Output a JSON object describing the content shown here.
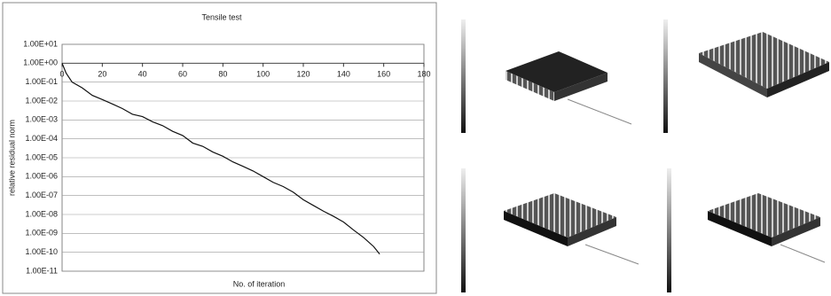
{
  "chart_data": {
    "type": "line",
    "title": "Tensile test",
    "x_label": "No. of iteration",
    "y_label": "relative residual norm",
    "y_log": true,
    "grid": true,
    "x": [
      0,
      2,
      5,
      10,
      15,
      20,
      25,
      30,
      35,
      40,
      45,
      50,
      55,
      60,
      65,
      70,
      75,
      80,
      85,
      90,
      95,
      100,
      105,
      110,
      115,
      120,
      125,
      130,
      135,
      140,
      145,
      150,
      155,
      158
    ],
    "series": [
      {
        "color": "#111111",
        "values": [
          1,
          0.3,
          0.1,
          0.05,
          0.02,
          0.012,
          0.007,
          0.004,
          0.002,
          0.0015,
          0.0008,
          0.0005,
          0.00025,
          0.00015,
          6e-05,
          4e-05,
          2e-05,
          1.2e-05,
          6e-06,
          3.5e-06,
          2e-06,
          1e-06,
          5e-07,
          3e-07,
          1.5e-07,
          6e-08,
          3e-08,
          1.5e-08,
          8e-09,
          4e-09,
          1.5e-09,
          6e-10,
          2e-10,
          8e-11
        ]
      }
    ],
    "xlim": [
      0,
      180
    ],
    "xticks": [
      0,
      20,
      40,
      60,
      80,
      100,
      120,
      140,
      160,
      180
    ],
    "ylim": [
      1e-11,
      10
    ],
    "yticks": [
      {
        "value": 10,
        "label": "1.00E+01"
      },
      {
        "value": 1,
        "label": "1.00E+00"
      },
      {
        "value": 0.1,
        "label": "1.00E-01"
      },
      {
        "value": 0.01,
        "label": "1.00E-02"
      },
      {
        "value": 0.001,
        "label": "1.00E-03"
      },
      {
        "value": 0.0001,
        "label": "1.00E-04"
      },
      {
        "value": 1e-05,
        "label": "1.00E-05"
      },
      {
        "value": 1e-06,
        "label": "1.00E-06"
      },
      {
        "value": 1e-07,
        "label": "1.00E-07"
      },
      {
        "value": 1e-08,
        "label": "1.00E-08"
      },
      {
        "value": 1e-09,
        "label": "1.00E-09"
      },
      {
        "value": 1e-10,
        "label": "1.00E-10"
      },
      {
        "value": 1e-11,
        "label": "1.00E-11"
      }
    ]
  }
}
